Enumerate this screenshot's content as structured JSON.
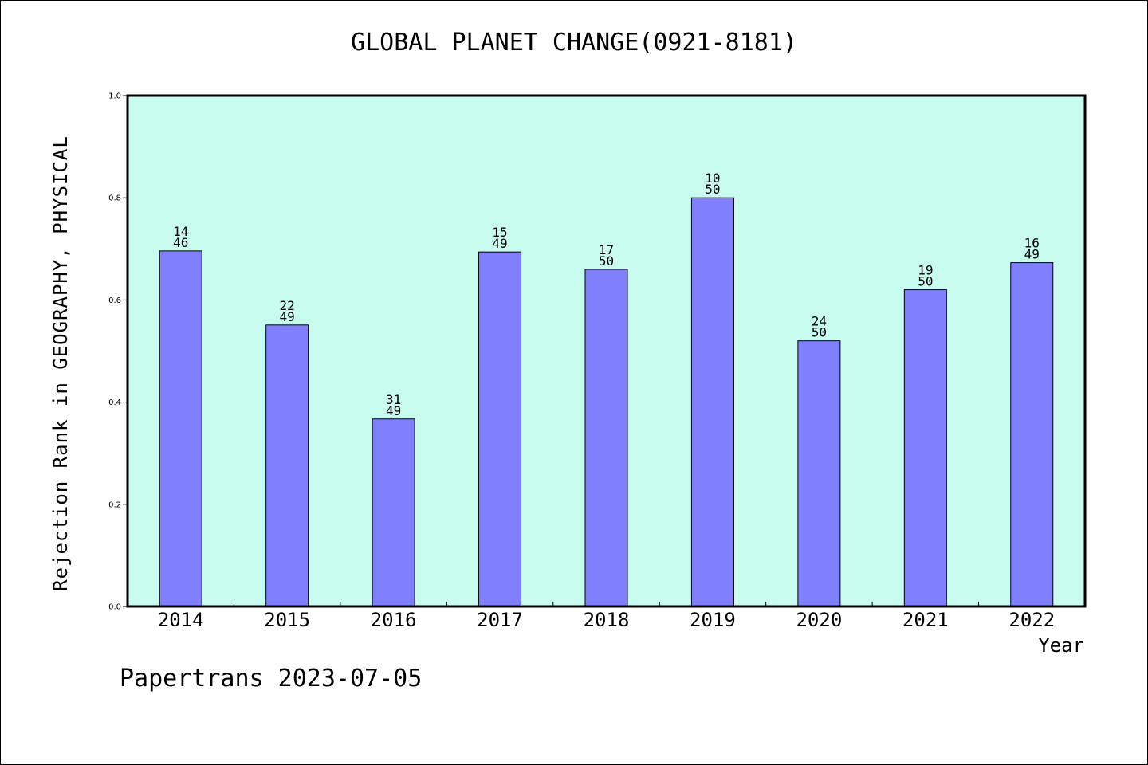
{
  "title": "GLOBAL PLANET CHANGE(0921-8181)",
  "footer": "Papertrans 2023-07-05",
  "colors": {
    "plot_bg": "#c8fcee",
    "bar": "#8080ff",
    "axis": "#000000"
  },
  "chart_data": {
    "type": "bar",
    "title": "GLOBAL PLANET CHANGE(0921-8181)",
    "xlabel": "Year",
    "ylabel": "Rejection Rank in GEOGRAPHY, PHYSICAL",
    "ylim": [
      0,
      1.0
    ],
    "yticks": [
      "0.0",
      "0.2",
      "0.4",
      "0.6",
      "0.8",
      "1.0"
    ],
    "categories": [
      "2014",
      "2015",
      "2016",
      "2017",
      "2018",
      "2019",
      "2020",
      "2021",
      "2022"
    ],
    "values": [
      0.696,
      0.551,
      0.367,
      0.694,
      0.66,
      0.8,
      0.52,
      0.62,
      0.673
    ],
    "data_labels": [
      [
        "14",
        "46"
      ],
      [
        "22",
        "49"
      ],
      [
        "31",
        "49"
      ],
      [
        "15",
        "49"
      ],
      [
        "17",
        "50"
      ],
      [
        "10",
        "50"
      ],
      [
        "24",
        "50"
      ],
      [
        "19",
        "50"
      ],
      [
        "16",
        "49"
      ]
    ],
    "grid": false,
    "legend": "none"
  }
}
